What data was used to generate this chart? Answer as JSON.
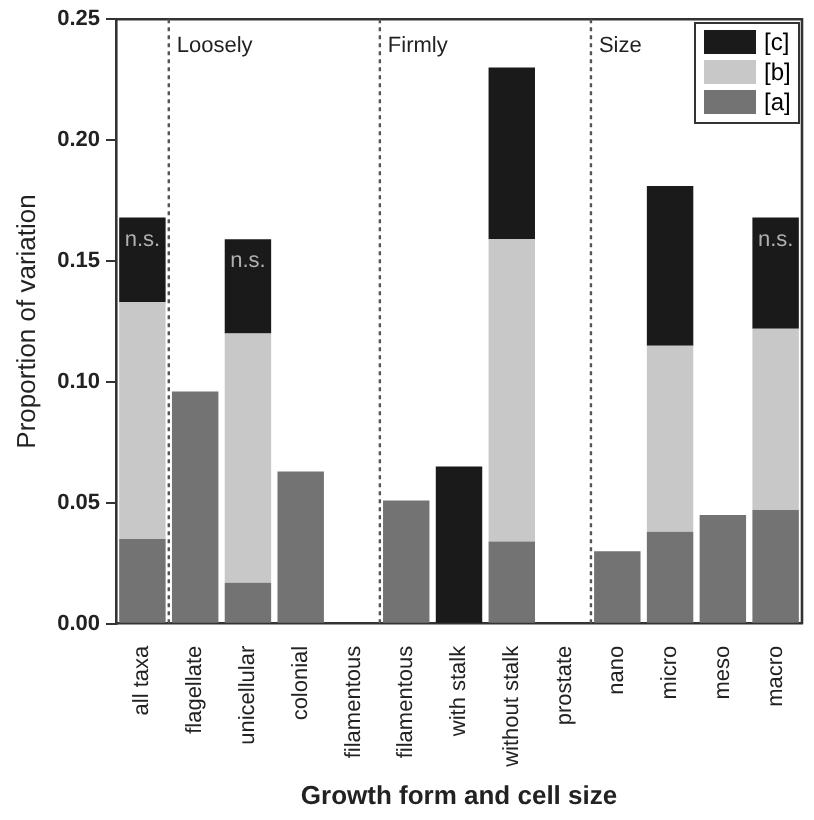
{
  "chart_data": {
    "type": "bar",
    "stacked": true,
    "xlabel": "Growth form and cell size",
    "ylabel": "Proportion of variation",
    "categories": [
      "all taxa",
      "flagellate",
      "unicellular",
      "colonial",
      "filamentous",
      "filamentous",
      "with stalk",
      "without stalk",
      "prostate",
      "nano",
      "micro",
      "meso",
      "macro"
    ],
    "series": [
      {
        "name": "[a]",
        "color": "#737373",
        "values": [
          0.035,
          0.096,
          0.017,
          0.063,
          0,
          0.051,
          0,
          0.034,
          0,
          0.03,
          0.038,
          0.045,
          0.047
        ]
      },
      {
        "name": "[b]",
        "color": "#c8c8c8",
        "values": [
          0.098,
          0,
          0.103,
          0,
          0,
          0,
          0,
          0.125,
          0,
          0,
          0.077,
          0,
          0.075
        ]
      },
      {
        "name": "[c]",
        "color": "#1a1a1a",
        "values": [
          0.035,
          0,
          0.039,
          0,
          0,
          0,
          0.065,
          0.071,
          0,
          0,
          0.066,
          0,
          0.046
        ]
      }
    ],
    "ylim": [
      0,
      0.25
    ],
    "yticks": [
      {
        "value": 0,
        "label": "0.00"
      },
      {
        "value": 0.05,
        "label": "0.05"
      },
      {
        "value": 0.1,
        "label": "0.10"
      },
      {
        "value": 0.15,
        "label": "0.15"
      },
      {
        "value": 0.2,
        "label": "0.20"
      },
      {
        "value": 0.25,
        "label": "0.25"
      }
    ],
    "annotations": [
      "Loosely",
      "Firmly",
      "Size",
      {
        "text": "n.s.",
        "x": "all taxa",
        "y": 0.168
      },
      {
        "text": "n.s.",
        "x": "unicellular",
        "y": 0.159
      },
      {
        "text": "n.s.",
        "x": "macro",
        "y": 0.168
      }
    ],
    "legend": "top right",
    "grid": false
  }
}
